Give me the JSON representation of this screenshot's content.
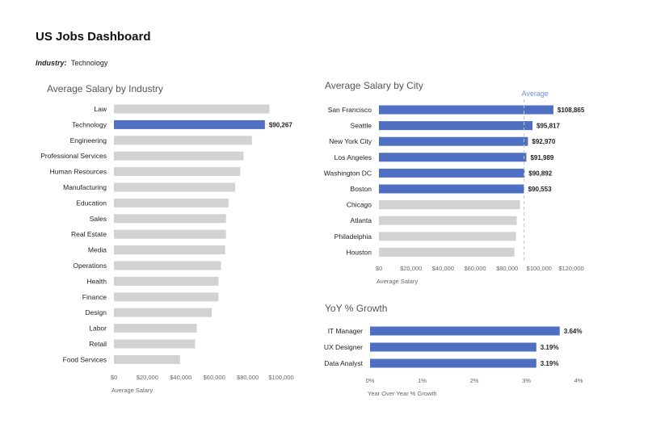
{
  "header": {
    "title": "US Jobs Dashboard",
    "filter_label": "Industry:",
    "filter_value": "Technology"
  },
  "colors": {
    "highlight": "#4f70c2",
    "default": "#d2d2d2",
    "avg_line": "#c9c9c9",
    "avg_text": "#6f8fd4",
    "axis_text": "#666666",
    "title_text": "#555555"
  },
  "chart_data": [
    {
      "id": "industry",
      "type": "bar",
      "orientation": "horizontal",
      "title": "Average Salary by Industry",
      "xlabel": "Average Salary",
      "xlim": [
        0,
        100000
      ],
      "xticks": [
        "$0",
        "$20,000",
        "$40,000",
        "$60,000",
        "$80,000",
        "$100,000"
      ],
      "categories": [
        "Law",
        "Technology",
        "Engineering",
        "Professional Services",
        "Human Resources",
        "Manufacturing",
        "Education",
        "Sales",
        "Real Estate",
        "Media",
        "Operations",
        "Health",
        "Finance",
        "Design",
        "Labor",
        "Retail",
        "Food Services"
      ],
      "values": [
        93000,
        90267,
        82500,
        77500,
        75500,
        72500,
        68500,
        67000,
        67000,
        66500,
        64000,
        62500,
        62500,
        58500,
        49500,
        48500,
        39500
      ],
      "highlighted": [
        false,
        true,
        false,
        false,
        false,
        false,
        false,
        false,
        false,
        false,
        false,
        false,
        false,
        false,
        false,
        false,
        false
      ],
      "data_labels": [
        "",
        "$90,267",
        "",
        "",
        "",
        "",
        "",
        "",
        "",
        "",
        "",
        "",
        "",
        "",
        "",
        "",
        ""
      ]
    },
    {
      "id": "city",
      "type": "bar",
      "orientation": "horizontal",
      "title": "Average Salary by City",
      "xlabel": "Average Salary",
      "xlim": [
        0,
        120000
      ],
      "xticks": [
        "$0",
        "$20,000",
        "$40,000",
        "$60,000",
        "$80,000",
        "$100,000",
        "$120,000"
      ],
      "average_label": "Average",
      "average_value": 90500,
      "categories": [
        "San Francisco",
        "Seattle",
        "New York City",
        "Los Angeles",
        "Washington DC",
        "Boston",
        "Chicago",
        "Atlanta",
        "Philadelphia",
        "Houston"
      ],
      "values": [
        108865,
        95817,
        92970,
        91989,
        90892,
        90553,
        88000,
        86000,
        85500,
        84500
      ],
      "highlighted": [
        true,
        true,
        true,
        true,
        true,
        true,
        false,
        false,
        false,
        false
      ],
      "data_labels": [
        "$108,865",
        "$95,817",
        "$92,970",
        "$91,989",
        "$90,892",
        "$90,553",
        "",
        "",
        "",
        ""
      ]
    },
    {
      "id": "growth",
      "type": "bar",
      "orientation": "horizontal",
      "title": "YoY % Growth",
      "xlabel": "Year Over Year % Growth",
      "xlim": [
        0,
        4
      ],
      "xticks": [
        "0%",
        "1%",
        "2%",
        "3%",
        "4%"
      ],
      "categories": [
        "IT Manager",
        "UX Designer",
        "Data Analyst"
      ],
      "values": [
        3.64,
        3.19,
        3.19
      ],
      "highlighted": [
        true,
        true,
        true
      ],
      "data_labels": [
        "3.64%",
        "3.19%",
        "3.19%"
      ]
    }
  ]
}
